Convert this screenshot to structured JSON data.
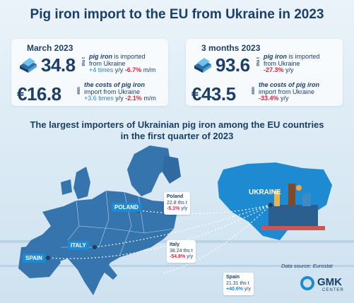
{
  "title": "Pig iron import to the EU from Ukraine in 2023",
  "cards": [
    {
      "period": "March 2023",
      "volume": {
        "value": "34.8",
        "unit": "ths t",
        "line1": "pig iron",
        "line1b": " is imported",
        "line2": "from Ukraine",
        "growth": "+4 times",
        "yy": " y/y ",
        "mm_change": "-6.7%",
        "mm": " m/m"
      },
      "cost": {
        "value": "€16.8",
        "unit": "mln",
        "line1": "the costs of",
        "line1b": " pig iron",
        "line2": "import from Ukraine",
        "growth": "+3.6 times",
        "yy": " y/y ",
        "mm_change": "-2.1%",
        "mm": " m/m"
      }
    },
    {
      "period": "3 months 2023",
      "volume": {
        "value": "93.6",
        "unit": "ths t",
        "line1": "pig iron",
        "line1b": " is imported",
        "line2": "from Ukraine",
        "change": "-27.3%",
        "yy": " y/y"
      },
      "cost": {
        "value": "€43.5",
        "unit": "mln",
        "line1": "the costs of",
        "line1b": " pig iron",
        "line2": "import from Ukraine",
        "change": "-33.4%",
        "yy": " y/y"
      }
    }
  ],
  "subtitle_line1": "The largest importers of Ukrainian pig iron among the EU countries",
  "subtitle_line2": "in the first quarter of 2023",
  "countries": [
    {
      "label": "POLAND",
      "name": "Poland",
      "volume": "22.8 ths t",
      "change": "-5.1%",
      "yy": " y/y"
    },
    {
      "label": "ITALY",
      "name": "Italy",
      "volume": "38.24 ths t",
      "change": "-54.8%",
      "yy": " y/y"
    },
    {
      "label": "SPAIN",
      "name": "Spain",
      "volume": "21.31 ths t",
      "change": "+40.6%",
      "yy": " y/y"
    }
  ],
  "ukraine_label": "UKRAINE",
  "source": "Data source: Eurostat",
  "logo": {
    "brand": "GMK",
    "sub": "CENTER"
  },
  "colors": {
    "dark_blue": "#1b3f66",
    "accent_blue": "#1e8ad1",
    "red": "#d7263d",
    "map_eu": "#3574ad"
  }
}
